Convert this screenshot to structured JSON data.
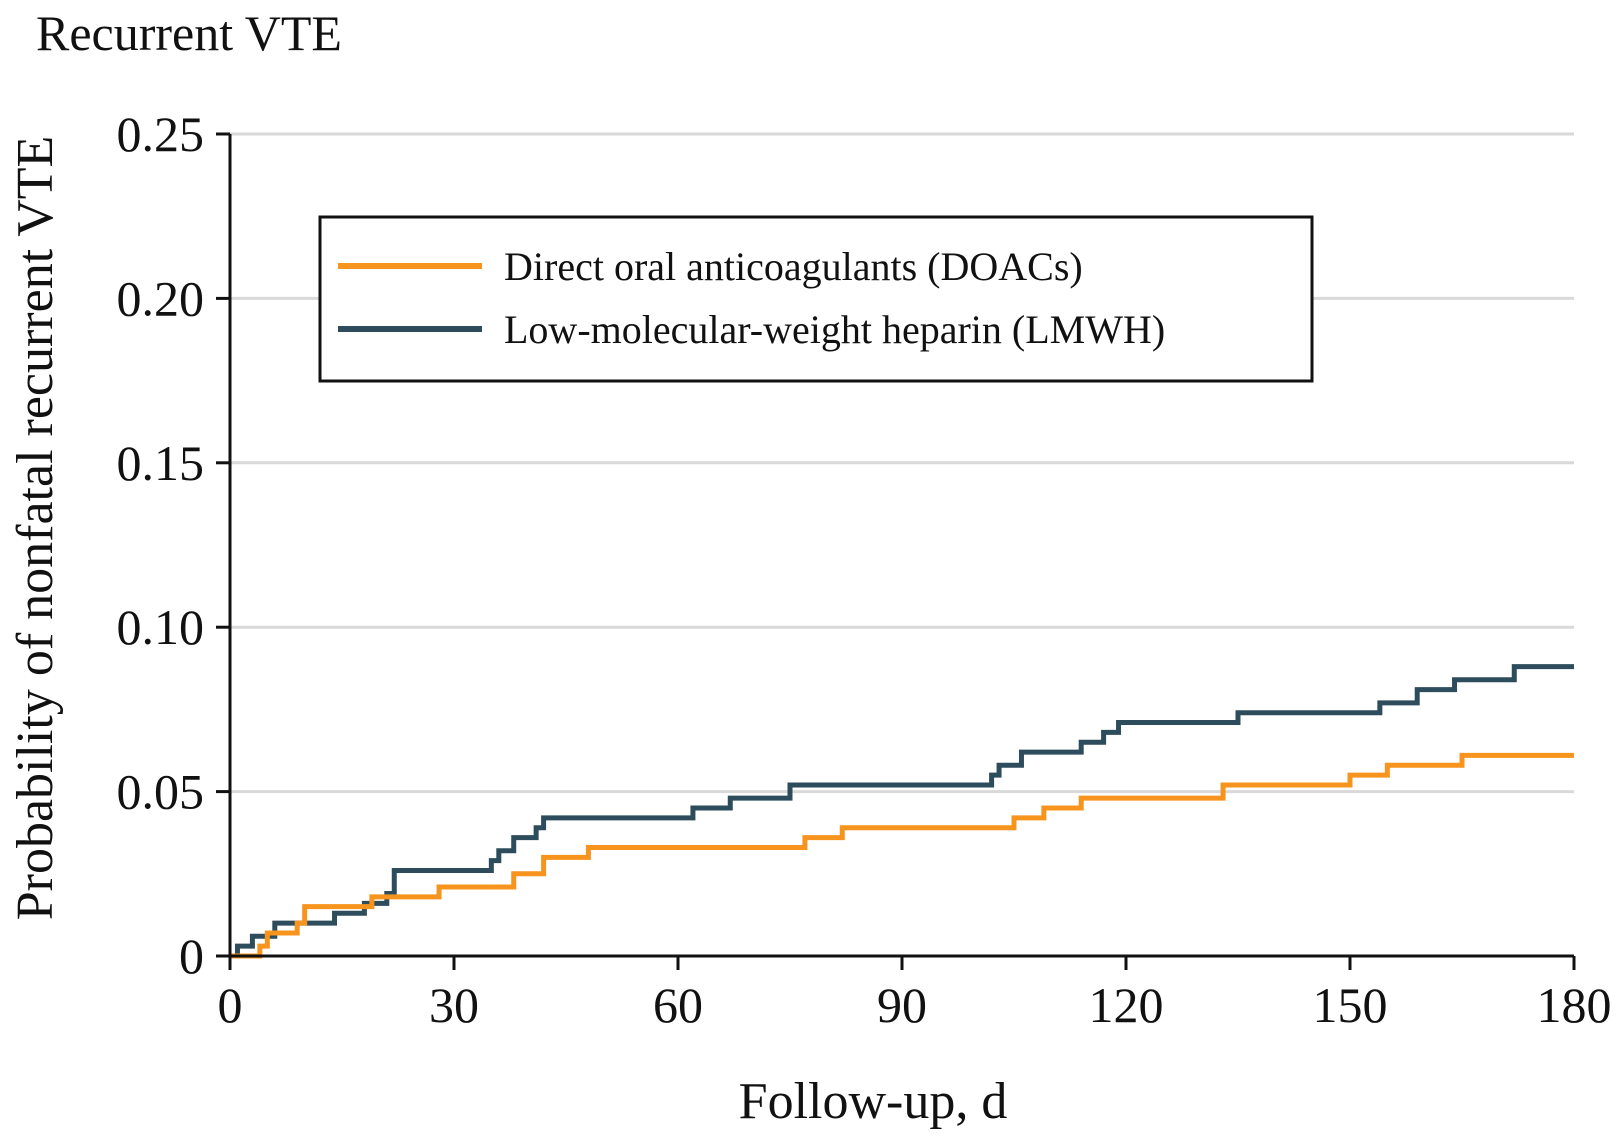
{
  "chart_data": {
    "type": "line",
    "step": true,
    "title": "Recurrent VTE",
    "xlabel": "Follow-up, d",
    "ylabel": "Probability of nonfatal recurrent VTE",
    "xlim": [
      0,
      180
    ],
    "ylim": [
      0,
      0.25
    ],
    "x_ticks": [
      0,
      30,
      60,
      90,
      120,
      150,
      180
    ],
    "x_tick_labels": [
      "0",
      "30",
      "60",
      "90",
      "120",
      "150",
      "180"
    ],
    "y_ticks": [
      0,
      0.05,
      0.1,
      0.15,
      0.2,
      0.25
    ],
    "y_tick_labels": [
      "0",
      "0.05",
      "0.10",
      "0.15",
      "0.20",
      "0.25"
    ],
    "grid": "horizontal",
    "legend_position": "top-center",
    "series": [
      {
        "name": "Direct oral anticoagulants (DOACs)",
        "color": "#F7941D",
        "points": [
          [
            0,
            0
          ],
          [
            4,
            0.003
          ],
          [
            5,
            0.007
          ],
          [
            9,
            0.01
          ],
          [
            10,
            0.015
          ],
          [
            19,
            0.018
          ],
          [
            28,
            0.021
          ],
          [
            38,
            0.025
          ],
          [
            42,
            0.03
          ],
          [
            48,
            0.033
          ],
          [
            77,
            0.036
          ],
          [
            82,
            0.039
          ],
          [
            105,
            0.042
          ],
          [
            109,
            0.045
          ],
          [
            114,
            0.048
          ],
          [
            133,
            0.052
          ],
          [
            150,
            0.055
          ],
          [
            155,
            0.058
          ],
          [
            165,
            0.061
          ],
          [
            180,
            0.061
          ]
        ]
      },
      {
        "name": "Low-molecular-weight heparin (LMWH)",
        "color": "#2E4D5C",
        "points": [
          [
            0,
            0
          ],
          [
            1,
            0.003
          ],
          [
            3,
            0.006
          ],
          [
            6,
            0.01
          ],
          [
            14,
            0.013
          ],
          [
            18,
            0.016
          ],
          [
            21,
            0.019
          ],
          [
            22,
            0.026
          ],
          [
            35,
            0.029
          ],
          [
            36,
            0.032
          ],
          [
            38,
            0.036
          ],
          [
            41,
            0.039
          ],
          [
            42,
            0.042
          ],
          [
            62,
            0.045
          ],
          [
            67,
            0.048
          ],
          [
            75,
            0.052
          ],
          [
            102,
            0.055
          ],
          [
            103,
            0.058
          ],
          [
            106,
            0.062
          ],
          [
            114,
            0.065
          ],
          [
            117,
            0.068
          ],
          [
            119,
            0.071
          ],
          [
            135,
            0.074
          ],
          [
            154,
            0.077
          ],
          [
            159,
            0.081
          ],
          [
            164,
            0.084
          ],
          [
            172,
            0.088
          ],
          [
            180,
            0.088
          ]
        ]
      }
    ]
  }
}
